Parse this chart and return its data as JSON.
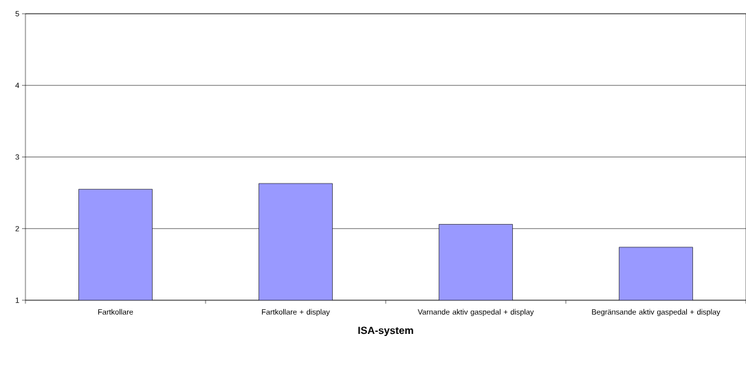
{
  "chart_data": {
    "type": "bar",
    "xlabel": "ISA-system",
    "categories": [
      "Fartkollare",
      "Fartkollare + display",
      "Varnande aktiv gaspedal + display",
      "Begränsande aktiv gaspedal + display"
    ],
    "values": [
      2.55,
      2.63,
      2.06,
      1.74
    ],
    "color": "#9999ff",
    "ylim": [
      1,
      5
    ],
    "yticks": [
      1,
      2,
      3,
      4,
      5
    ],
    "grid": "y"
  }
}
